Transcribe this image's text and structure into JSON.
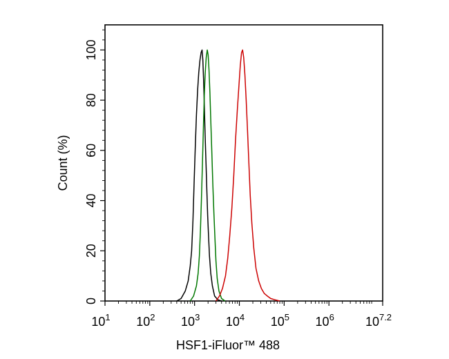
{
  "chart_data": {
    "type": "line",
    "xlabel": "HSF1-iFluor™ 488",
    "ylabel": "Count  (%)",
    "x_scale": "log10",
    "xlim": [
      10,
      15848932
    ],
    "ylim": [
      0,
      110
    ],
    "grid": false,
    "x_ticks": [
      {
        "base": "10",
        "exp": "1",
        "value": 10
      },
      {
        "base": "10",
        "exp": "2",
        "value": 100
      },
      {
        "base": "10",
        "exp": "3",
        "value": 1000
      },
      {
        "base": "10",
        "exp": "4",
        "value": 10000
      },
      {
        "base": "10",
        "exp": "5",
        "value": 100000
      },
      {
        "base": "10",
        "exp": "6",
        "value": 1000000
      },
      {
        "base": "10",
        "exp": "7.2",
        "value": 15848932
      }
    ],
    "y_ticks": [
      "0",
      "20",
      "40",
      "60",
      "80",
      "100"
    ],
    "series": [
      {
        "color": "#000000",
        "points": [
          [
            400,
            0
          ],
          [
            500,
            1
          ],
          [
            620,
            4
          ],
          [
            720,
            8
          ],
          [
            800,
            14
          ],
          [
            860,
            20
          ],
          [
            920,
            32
          ],
          [
            980,
            48
          ],
          [
            1040,
            62
          ],
          [
            1100,
            74
          ],
          [
            1170,
            84
          ],
          [
            1240,
            91
          ],
          [
            1320,
            96
          ],
          [
            1400,
            99
          ],
          [
            1470,
            100
          ],
          [
            1530,
            96
          ],
          [
            1590,
            88
          ],
          [
            1650,
            78
          ],
          [
            1720,
            66
          ],
          [
            1800,
            55
          ],
          [
            1880,
            44
          ],
          [
            1960,
            34
          ],
          [
            2050,
            26
          ],
          [
            2150,
            18
          ],
          [
            2300,
            11
          ],
          [
            2500,
            6
          ],
          [
            2800,
            2
          ],
          [
            3300,
            0.5
          ],
          [
            4000,
            0
          ]
        ]
      },
      {
        "color": "#007700",
        "points": [
          [
            800,
            0
          ],
          [
            950,
            2
          ],
          [
            1100,
            6
          ],
          [
            1200,
            11
          ],
          [
            1280,
            18
          ],
          [
            1350,
            28
          ],
          [
            1420,
            40
          ],
          [
            1500,
            55
          ],
          [
            1580,
            70
          ],
          [
            1650,
            82
          ],
          [
            1730,
            91
          ],
          [
            1820,
            97
          ],
          [
            1920,
            100
          ],
          [
            2010,
            98
          ],
          [
            2100,
            92
          ],
          [
            2200,
            83
          ],
          [
            2300,
            72
          ],
          [
            2420,
            60
          ],
          [
            2550,
            47
          ],
          [
            2700,
            35
          ],
          [
            2850,
            25
          ],
          [
            3000,
            16
          ],
          [
            3200,
            9
          ],
          [
            3500,
            4
          ],
          [
            4000,
            1
          ],
          [
            4800,
            0
          ]
        ]
      },
      {
        "color": "#cc0000",
        "points": [
          [
            3000,
            0
          ],
          [
            3600,
            2
          ],
          [
            4200,
            5
          ],
          [
            4900,
            10
          ],
          [
            5500,
            17
          ],
          [
            6100,
            26
          ],
          [
            6800,
            37
          ],
          [
            7500,
            50
          ],
          [
            8200,
            64
          ],
          [
            9000,
            76
          ],
          [
            9800,
            86
          ],
          [
            10500,
            94
          ],
          [
            11200,
            99
          ],
          [
            11800,
            100
          ],
          [
            12500,
            97
          ],
          [
            13300,
            90
          ],
          [
            14200,
            80
          ],
          [
            15200,
            68
          ],
          [
            16300,
            55
          ],
          [
            17500,
            42
          ],
          [
            19000,
            31
          ],
          [
            21000,
            21
          ],
          [
            23500,
            13
          ],
          [
            27000,
            8
          ],
          [
            31000,
            5
          ],
          [
            36000,
            3
          ],
          [
            42000,
            2
          ],
          [
            50000,
            1
          ],
          [
            62000,
            0.5
          ],
          [
            80000,
            0
          ]
        ]
      }
    ]
  }
}
